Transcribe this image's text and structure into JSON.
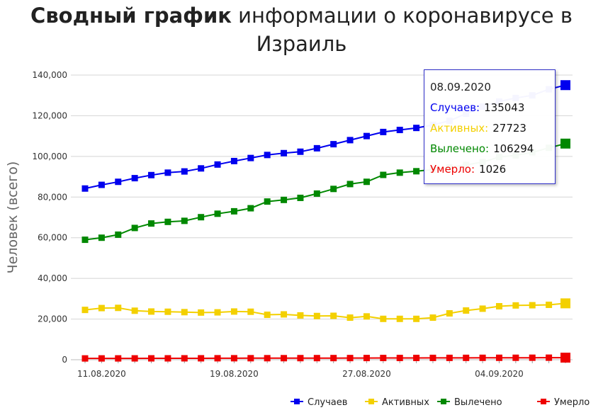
{
  "title": {
    "bold": "Сводный график",
    "rest": " информации о коронавирусе в Израиль"
  },
  "chart_data": {
    "type": "line",
    "x": [
      "10.08.2020",
      "11.08.2020",
      "12.08.2020",
      "13.08.2020",
      "14.08.2020",
      "15.08.2020",
      "16.08.2020",
      "17.08.2020",
      "18.08.2020",
      "19.08.2020",
      "20.08.2020",
      "21.08.2020",
      "22.08.2020",
      "23.08.2020",
      "24.08.2020",
      "25.08.2020",
      "26.08.2020",
      "27.08.2020",
      "28.08.2020",
      "29.08.2020",
      "30.08.2020",
      "31.08.2020",
      "01.09.2020",
      "02.09.2020",
      "03.09.2020",
      "04.09.2020",
      "05.09.2020",
      "06.09.2020",
      "07.09.2020",
      "08.09.2020"
    ],
    "x_tick_labels": [
      "11.08.2020",
      "19.08.2020",
      "27.08.2020",
      "04.09.2020"
    ],
    "ylabel": "Человек (всего)",
    "ylim": [
      0,
      140000
    ],
    "y_ticks": [
      0,
      20000,
      40000,
      60000,
      80000,
      100000,
      120000,
      140000
    ],
    "y_tick_labels": [
      "0",
      "20,000",
      "40,000",
      "60,000",
      "80,000",
      "100,000",
      "120,000",
      "140,000"
    ],
    "grid": true,
    "legend_position": "bottom-right",
    "series": [
      {
        "name": "Случаев",
        "color": "#0000ee",
        "values": [
          84200,
          86000,
          87500,
          89300,
          90800,
          92000,
          92600,
          94100,
          96000,
          97700,
          99200,
          100700,
          101600,
          102300,
          104000,
          106000,
          108000,
          110000,
          112000,
          113000,
          114000,
          115500,
          117500,
          121000,
          124500,
          127000,
          128700,
          130000,
          133000,
          135043
        ]
      },
      {
        "name": "Активных",
        "color": "#f3d000",
        "values": [
          24500,
          25400,
          25500,
          24100,
          23700,
          23600,
          23400,
          23200,
          23300,
          23700,
          23600,
          22100,
          22300,
          21800,
          21500,
          21600,
          20700,
          21300,
          20100,
          20100,
          20100,
          20700,
          22800,
          24200,
          25100,
          26300,
          26700,
          26800,
          27000,
          27723
        ]
      },
      {
        "name": "Вылечено",
        "color": "#008800",
        "values": [
          59000,
          60000,
          61500,
          64800,
          67000,
          67800,
          68300,
          70100,
          71800,
          73000,
          74500,
          77800,
          78600,
          79600,
          81700,
          84000,
          86400,
          87500,
          90900,
          92000,
          92700,
          93500,
          94600,
          95800,
          97200,
          99700,
          100500,
          102000,
          104200,
          106294
        ]
      },
      {
        "name": "Умерло",
        "color": "#ee0000",
        "values": [
          640,
          650,
          660,
          670,
          680,
          690,
          700,
          710,
          730,
          740,
          750,
          760,
          770,
          790,
          800,
          810,
          820,
          840,
          860,
          870,
          880,
          900,
          910,
          920,
          940,
          950,
          960,
          980,
          1000,
          1026
        ]
      }
    ]
  },
  "tooltip": {
    "date": "08.09.2020",
    "rows": [
      {
        "label": "Случаев:",
        "value": "135043",
        "color": "#0000ee"
      },
      {
        "label": "Активных:",
        "value": "27723",
        "color": "#f3d000"
      },
      {
        "label": "Вылечено:",
        "value": "106294",
        "color": "#008800"
      },
      {
        "label": "Умерло:",
        "value": "1026",
        "color": "#ee0000"
      }
    ]
  }
}
